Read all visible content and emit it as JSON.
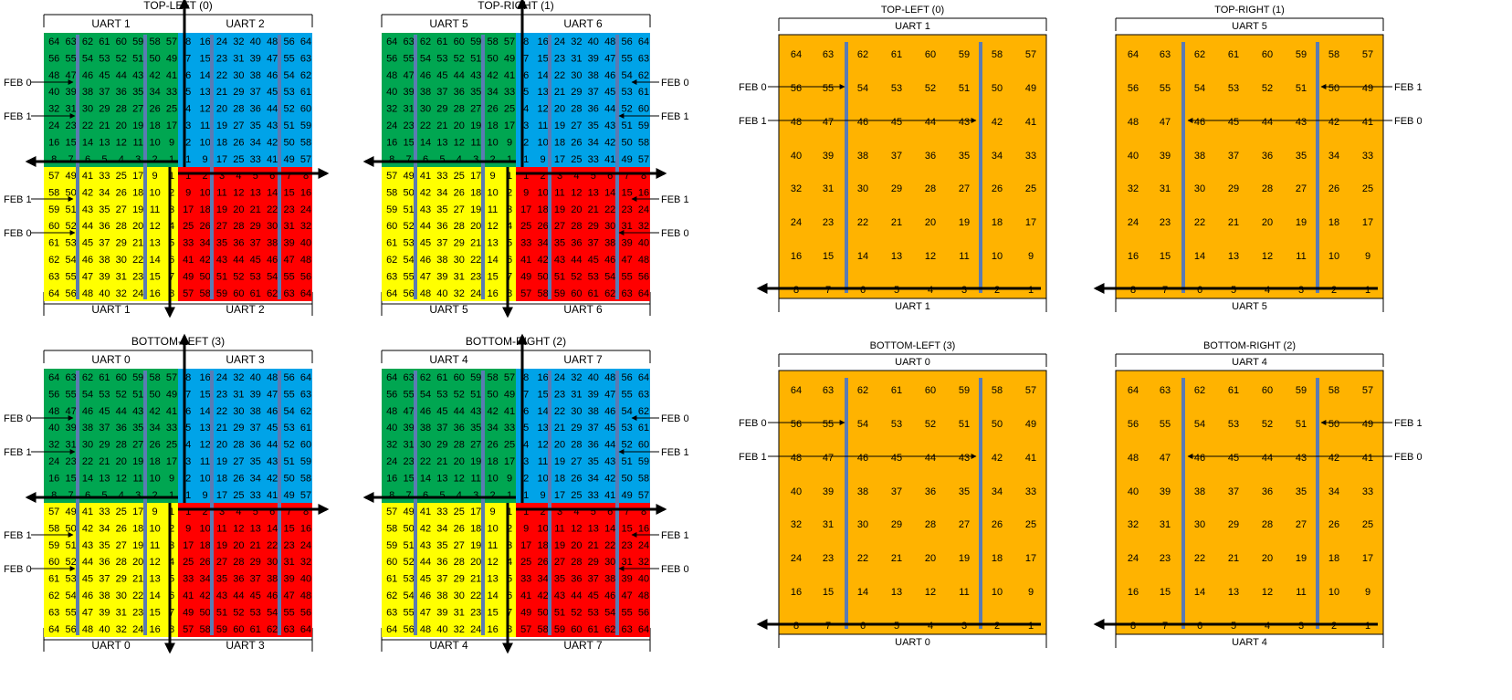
{
  "colors": {
    "green": "#00a651",
    "blue": "#00a3e8",
    "yellow": "#ffff00",
    "red": "#ff0000",
    "orange": "#ffb300",
    "strip": "#5b7bb3",
    "line": "#000000"
  },
  "text": {
    "feb0": "FEB 0",
    "feb1": "FEB 1"
  },
  "grids": {
    "green": [
      [
        "64",
        "63",
        "62",
        "61",
        "60",
        "59",
        "58",
        "57"
      ],
      [
        "56",
        "55",
        "54",
        "53",
        "52",
        "51",
        "50",
        "49"
      ],
      [
        "48",
        "47",
        "46",
        "45",
        "44",
        "43",
        "42",
        "41"
      ],
      [
        "40",
        "39",
        "38",
        "37",
        "36",
        "35",
        "34",
        "33"
      ],
      [
        "32",
        "31",
        "30",
        "29",
        "28",
        "27",
        "26",
        "25"
      ],
      [
        "24",
        "23",
        "22",
        "21",
        "20",
        "19",
        "18",
        "17"
      ],
      [
        "16",
        "15",
        "14",
        "13",
        "12",
        "11",
        "10",
        "9"
      ],
      [
        "8",
        "7",
        "6",
        "5",
        "4",
        "3",
        "2",
        "1"
      ]
    ],
    "blue": [
      [
        "8",
        "16",
        "24",
        "32",
        "40",
        "48",
        "56",
        "64"
      ],
      [
        "7",
        "15",
        "23",
        "31",
        "39",
        "47",
        "55",
        "63"
      ],
      [
        "6",
        "14",
        "22",
        "30",
        "38",
        "46",
        "54",
        "62"
      ],
      [
        "5",
        "13",
        "21",
        "29",
        "37",
        "45",
        "53",
        "61"
      ],
      [
        "4",
        "12",
        "20",
        "28",
        "36",
        "44",
        "52",
        "60"
      ],
      [
        "3",
        "11",
        "19",
        "27",
        "35",
        "43",
        "51",
        "59"
      ],
      [
        "2",
        "10",
        "18",
        "26",
        "34",
        "42",
        "50",
        "58"
      ],
      [
        "1",
        "9",
        "17",
        "25",
        "33",
        "41",
        "49",
        "57"
      ]
    ],
    "yellow": [
      [
        "57",
        "49",
        "41",
        "33",
        "25",
        "17",
        "9",
        "1"
      ],
      [
        "58",
        "50",
        "42",
        "34",
        "26",
        "18",
        "10",
        "2"
      ],
      [
        "59",
        "51",
        "43",
        "35",
        "27",
        "19",
        "11",
        "3"
      ],
      [
        "60",
        "52",
        "44",
        "36",
        "28",
        "20",
        "12",
        "4"
      ],
      [
        "61",
        "53",
        "45",
        "37",
        "29",
        "21",
        "13",
        "5"
      ],
      [
        "62",
        "54",
        "46",
        "38",
        "30",
        "22",
        "14",
        "6"
      ],
      [
        "63",
        "55",
        "47",
        "39",
        "31",
        "23",
        "15",
        "7"
      ],
      [
        "64",
        "56",
        "48",
        "40",
        "32",
        "24",
        "16",
        "8"
      ]
    ],
    "red": [
      [
        "1",
        "2",
        "3",
        "4",
        "5",
        "6",
        "7",
        "8"
      ],
      [
        "9",
        "10",
        "11",
        "12",
        "13",
        "14",
        "15",
        "16"
      ],
      [
        "17",
        "18",
        "19",
        "20",
        "21",
        "22",
        "23",
        "24"
      ],
      [
        "25",
        "26",
        "27",
        "28",
        "29",
        "30",
        "31",
        "32"
      ],
      [
        "33",
        "34",
        "35",
        "36",
        "37",
        "38",
        "39",
        "40"
      ],
      [
        "41",
        "42",
        "43",
        "44",
        "45",
        "46",
        "47",
        "48"
      ],
      [
        "49",
        "50",
        "51",
        "52",
        "53",
        "54",
        "55",
        "56"
      ],
      [
        "57",
        "58",
        "59",
        "60",
        "61",
        "62",
        "63",
        "64"
      ]
    ]
  },
  "left_quads": [
    {
      "title": "TOP-LEFT (0)",
      "uart_left": "UART 1",
      "uart_right": "UART 2",
      "side": "left"
    },
    {
      "title": "TOP-RIGHT (1)",
      "uart_left": "UART 5",
      "uart_right": "UART 6",
      "side": "right"
    },
    {
      "title": "BOTTOM-LEFT (3)",
      "uart_left": "UART 0",
      "uart_right": "UART 3",
      "side": "left"
    },
    {
      "title": "BOTTOM-RIGHT (2)",
      "uart_left": "UART 4",
      "uart_right": "UART 7",
      "side": "right"
    }
  ],
  "right_quads": [
    {
      "title": "TOP-LEFT (0)",
      "uart_top": "UART 1",
      "uart_bottom": "UART 1",
      "side": "left"
    },
    {
      "title": "TOP-RIGHT (1)",
      "uart_top": "UART 5",
      "uart_bottom": "UART 5",
      "side": "right"
    },
    {
      "title": "BOTTOM-LEFT (3)",
      "uart_top": "UART 0",
      "uart_bottom": "UART 0",
      "side": "left"
    },
    {
      "title": "BOTTOM-RIGHT (2)",
      "uart_top": "UART 4",
      "uart_bottom": "UART 4",
      "side": "right"
    }
  ]
}
